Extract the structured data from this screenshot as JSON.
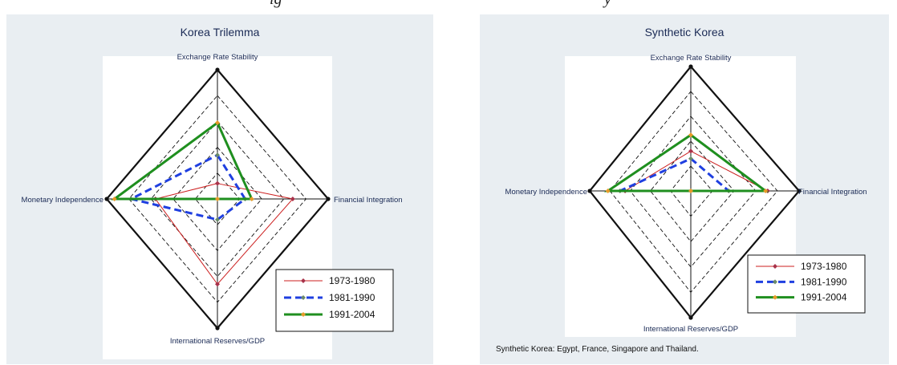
{
  "chart_data": [
    {
      "type": "radar",
      "title": "Korea Trilemma",
      "axes": [
        "Exchange Rate Stability",
        "Financial Integration",
        "International Reserves/GDP",
        "Monetary Independence"
      ],
      "rmax": 1.0,
      "grid_levels": [
        0.2,
        0.4,
        0.6,
        0.8,
        1.0
      ],
      "series": [
        {
          "name": "1973-1980",
          "color": "#cc1f1f",
          "values": [
            0.12,
            0.68,
            0.66,
            0.56
          ]
        },
        {
          "name": "1981-1990",
          "color": "#1f3fe0",
          "values": [
            0.34,
            0.25,
            0.16,
            0.78
          ]
        },
        {
          "name": "1991-2004",
          "color": "#1f8f1f",
          "values": [
            0.59,
            0.31,
            0.0,
            0.93
          ]
        }
      ],
      "legend": "bottom-right",
      "footnote": ""
    },
    {
      "type": "radar",
      "title": "Synthetic Korea",
      "axes": [
        "Exchange Rate Stability",
        "Financial Integration",
        "International Reserves/GDP",
        "Monetary Independence"
      ],
      "rmax": 1.0,
      "grid_levels": [
        0.2,
        0.4,
        0.6,
        0.8,
        1.0
      ],
      "series": [
        {
          "name": "1973-1980",
          "color": "#cc1f1f",
          "values": [
            0.32,
            0.71,
            0.0,
            0.65
          ]
        },
        {
          "name": "1981-1990",
          "color": "#1f3fe0",
          "values": [
            0.26,
            0.35,
            0.0,
            0.7
          ]
        },
        {
          "name": "1991-2004",
          "color": "#1f8f1f",
          "values": [
            0.45,
            0.69,
            0.0,
            0.82
          ]
        }
      ],
      "legend": "bottom-right",
      "footnote": "Synthetic Korea: Egypt, France, Singapore and Thailand."
    }
  ],
  "header_fragments": [
    "ig",
    "y"
  ]
}
